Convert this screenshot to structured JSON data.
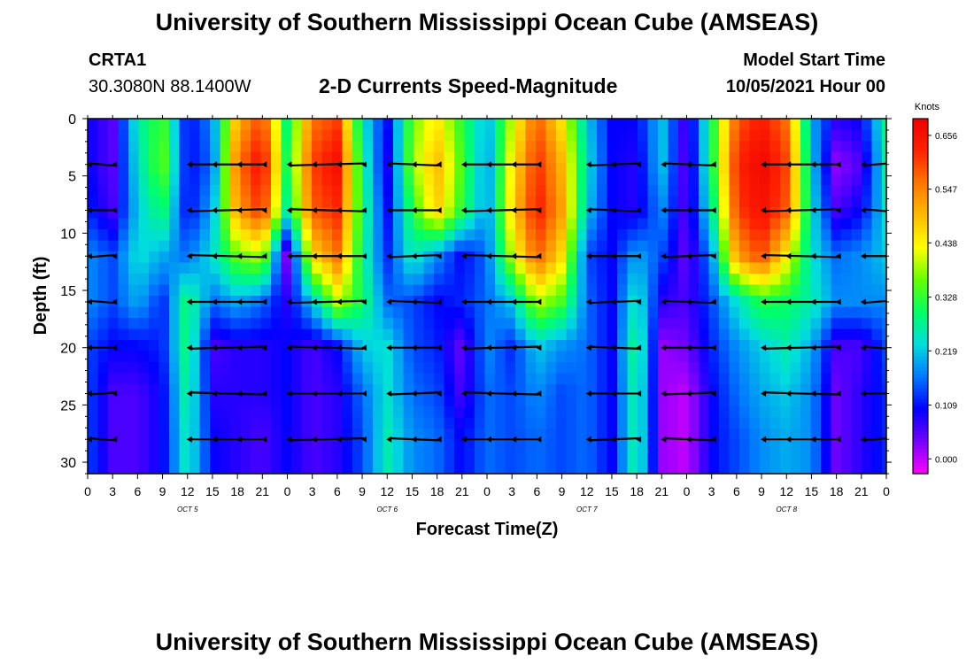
{
  "header": {
    "title": "University of Southern Mississippi Ocean Cube (AMSEAS)",
    "station_id": "CRTA1",
    "station_coords": "30.3080N  88.1400W",
    "plot_title": "2-D Currents Speed-Magnitude",
    "model_start_label": "Model Start Time",
    "model_start_value": "10/05/2021 Hour 00"
  },
  "footer": {
    "title": "University of Southern Mississippi Ocean Cube (AMSEAS)"
  },
  "colors": {
    "scale": [
      "#ff00ff",
      "#7700ff",
      "#0000ff",
      "#0077ff",
      "#00dddd",
      "#00ff66",
      "#66ff00",
      "#ffff00",
      "#ffbb00",
      "#ff7700",
      "#ff2200",
      "#ee0000"
    ],
    "arrow": "#000000",
    "axis": "#000000"
  },
  "chart_data": {
    "type": "heatmap",
    "xlabel": "Forecast Time(Z)",
    "ylabel": "Depth (ft)",
    "x_tick_labels": [
      "0",
      "3",
      "6",
      "9",
      "12",
      "15",
      "18",
      "21",
      "0",
      "3",
      "6",
      "9",
      "12",
      "15",
      "18",
      "21",
      "0",
      "3",
      "6",
      "9",
      "12",
      "15",
      "18",
      "21",
      "0",
      "3",
      "6",
      "9",
      "12",
      "15",
      "18",
      "21",
      "0"
    ],
    "x_range_hours": [
      0,
      96
    ],
    "day_labels": [
      {
        "label": "OCT 5",
        "hour": 12
      },
      {
        "label": "OCT 6",
        "hour": 36
      },
      {
        "label": "OCT 7",
        "hour": 60
      },
      {
        "label": "OCT 8",
        "hour": 84
      }
    ],
    "y_ticks": [
      0,
      5,
      10,
      15,
      20,
      25,
      30
    ],
    "y_range_ft": [
      0,
      31
    ],
    "colorbar": {
      "unit": "Knots",
      "tick_labels": [
        "0.656",
        "0.547",
        "0.438",
        "0.328",
        "0.219",
        "0.109",
        "0.000"
      ],
      "range": [
        -0.03,
        0.69
      ]
    },
    "vector_depths_ft": [
      4,
      8,
      12,
      16,
      20,
      24,
      28
    ],
    "speed_field_knots": {
      "time_hours": [
        0,
        3,
        6,
        9,
        12,
        15,
        18,
        21,
        24,
        27,
        30,
        33,
        36,
        39,
        42,
        45,
        48,
        51,
        54,
        57,
        60,
        63,
        66,
        69,
        72,
        75,
        78,
        81,
        84,
        87,
        90,
        93,
        96
      ],
      "depth_ft": [
        0,
        4,
        8,
        12,
        16,
        20,
        24,
        28,
        31
      ],
      "rows": [
        [
          0.1,
          0.05,
          0.26,
          0.34,
          0.1,
          0.18,
          0.5,
          0.6,
          0.28,
          0.56,
          0.6,
          0.25,
          0.1,
          0.36,
          0.45,
          0.32,
          0.2,
          0.4,
          0.58,
          0.45,
          0.22,
          0.1,
          0.1,
          0.22,
          0.05,
          0.3,
          0.58,
          0.64,
          0.56,
          0.2,
          0.08,
          0.1,
          0.28
        ],
        [
          0.1,
          0.05,
          0.24,
          0.36,
          0.1,
          0.16,
          0.56,
          0.66,
          0.3,
          0.6,
          0.66,
          0.28,
          0.08,
          0.38,
          0.5,
          0.34,
          0.18,
          0.44,
          0.62,
          0.5,
          0.24,
          0.1,
          0.08,
          0.22,
          0.04,
          0.3,
          0.62,
          0.68,
          0.6,
          0.22,
          0.02,
          0.06,
          0.26
        ],
        [
          0.12,
          0.06,
          0.22,
          0.3,
          0.1,
          0.2,
          0.52,
          0.62,
          0.26,
          0.58,
          0.62,
          0.3,
          0.1,
          0.32,
          0.48,
          0.32,
          0.18,
          0.46,
          0.64,
          0.52,
          0.22,
          0.1,
          0.08,
          0.18,
          0.05,
          0.26,
          0.6,
          0.66,
          0.58,
          0.24,
          0.06,
          0.1,
          0.24
        ],
        [
          0.18,
          0.14,
          0.24,
          0.2,
          0.16,
          0.24,
          0.36,
          0.4,
          0.02,
          0.46,
          0.56,
          0.28,
          0.12,
          0.26,
          0.18,
          0.1,
          0.16,
          0.4,
          0.58,
          0.46,
          0.14,
          0.1,
          0.2,
          0.14,
          0.04,
          0.18,
          0.52,
          0.6,
          0.44,
          0.24,
          0.16,
          0.18,
          0.22
        ],
        [
          0.18,
          0.14,
          0.2,
          0.12,
          0.3,
          0.16,
          0.2,
          0.16,
          0.08,
          0.22,
          0.4,
          0.3,
          0.16,
          0.14,
          0.1,
          0.12,
          0.16,
          0.22,
          0.4,
          0.34,
          0.16,
          0.1,
          0.26,
          0.08,
          0.06,
          0.14,
          0.24,
          0.32,
          0.3,
          0.26,
          0.18,
          0.18,
          0.18
        ],
        [
          0.14,
          0.1,
          0.1,
          0.12,
          0.3,
          0.06,
          0.08,
          0.08,
          0.1,
          0.06,
          0.1,
          0.22,
          0.24,
          0.14,
          0.12,
          0.04,
          0.18,
          0.12,
          0.22,
          0.18,
          0.16,
          0.1,
          0.3,
          0.02,
          0.04,
          0.12,
          0.18,
          0.22,
          0.26,
          0.2,
          0.06,
          0.06,
          0.14
        ],
        [
          0.14,
          0.06,
          0.06,
          0.1,
          0.28,
          0.08,
          0.08,
          0.08,
          0.1,
          0.06,
          0.08,
          0.16,
          0.24,
          0.16,
          0.14,
          0.06,
          0.16,
          0.14,
          0.18,
          0.14,
          0.16,
          0.1,
          0.28,
          0.02,
          0.0,
          0.1,
          0.16,
          0.2,
          0.22,
          0.18,
          0.04,
          0.08,
          0.12
        ],
        [
          0.14,
          0.06,
          0.06,
          0.1,
          0.26,
          0.1,
          0.08,
          0.06,
          0.1,
          0.06,
          0.08,
          0.14,
          0.26,
          0.18,
          0.16,
          0.1,
          0.16,
          0.14,
          0.16,
          0.14,
          0.16,
          0.1,
          0.28,
          0.02,
          0.0,
          0.1,
          0.14,
          0.18,
          0.2,
          0.18,
          0.04,
          0.08,
          0.12
        ],
        [
          0.14,
          0.06,
          0.06,
          0.1,
          0.26,
          0.1,
          0.08,
          0.06,
          0.1,
          0.06,
          0.08,
          0.14,
          0.26,
          0.18,
          0.16,
          0.1,
          0.16,
          0.14,
          0.16,
          0.14,
          0.16,
          0.1,
          0.28,
          0.02,
          0.0,
          0.1,
          0.14,
          0.18,
          0.2,
          0.18,
          0.04,
          0.08,
          0.12
        ]
      ]
    }
  }
}
